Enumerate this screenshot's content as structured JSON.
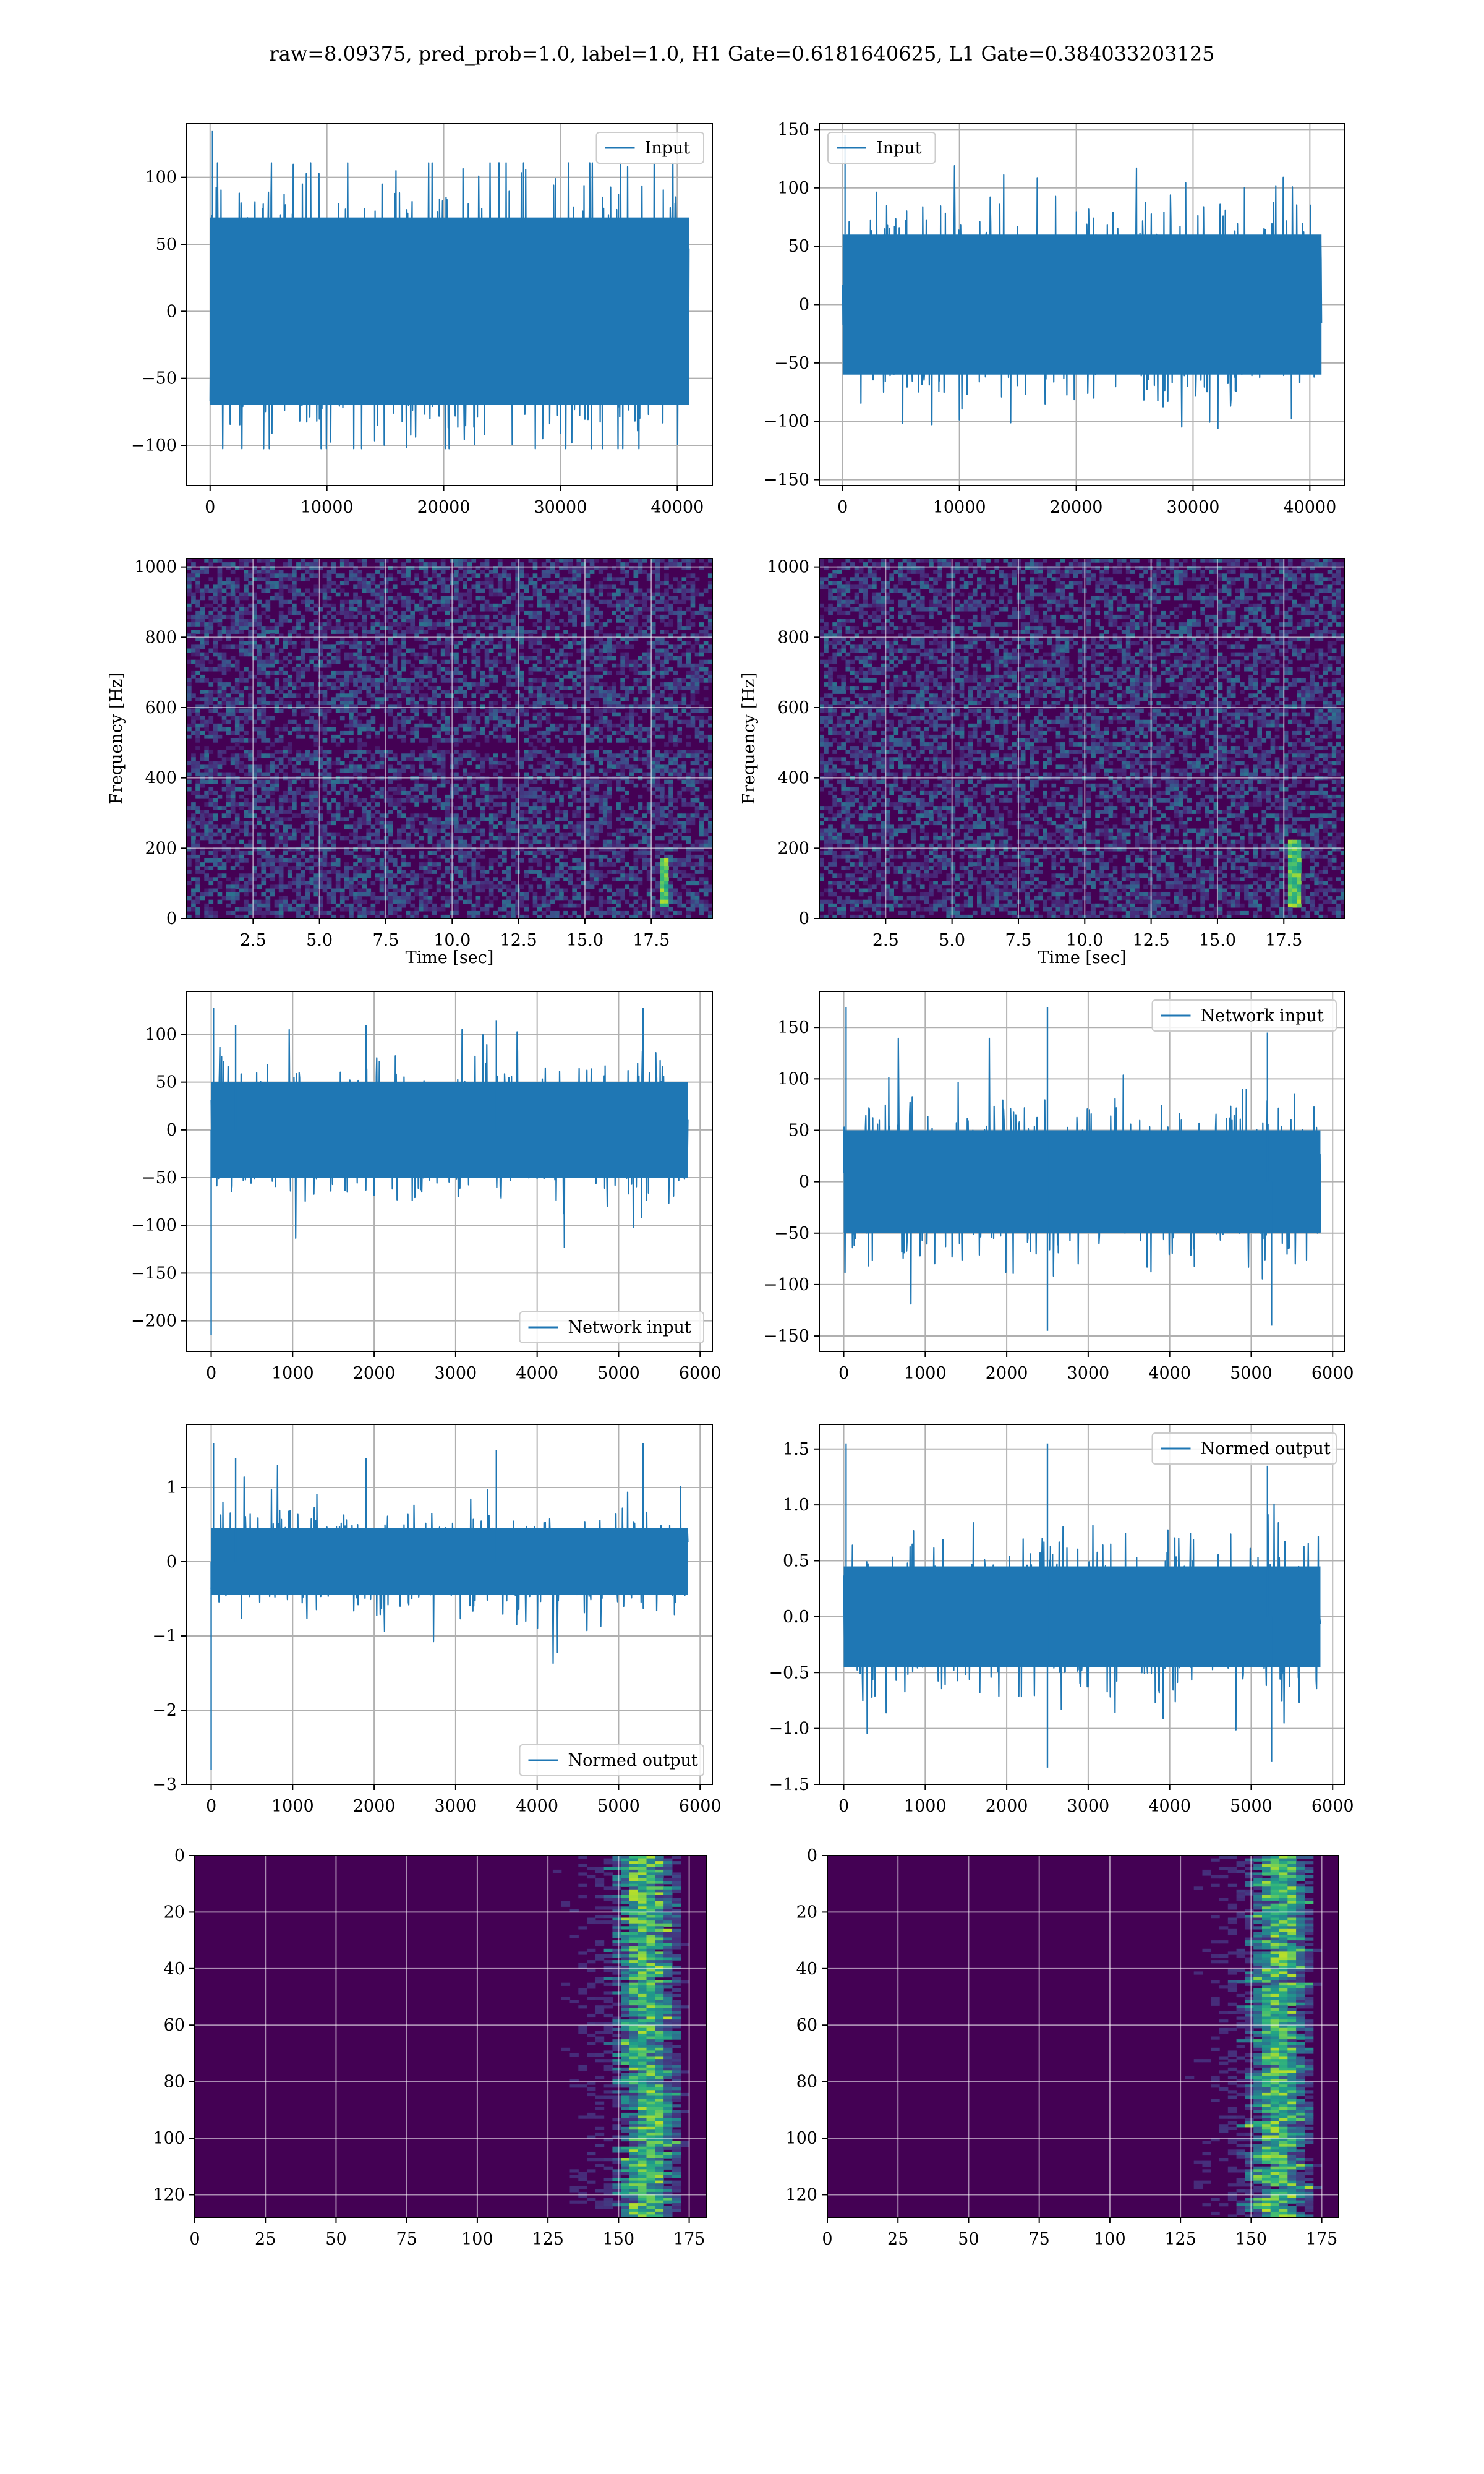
{
  "figure": {
    "title": "raw=8.09375, pred_prob=1.0, label=1.0, H1 Gate=0.6181640625, L1 Gate=0.384033203125",
    "colors": {
      "line": "#1f77b4",
      "grid": "#b0b0b0",
      "axes": "#000000",
      "viridis_dark": "#440154",
      "viridis_mid": "#21918c",
      "viridis_bright": "#fde725"
    }
  },
  "chart_data": [
    {
      "id": "h1-input",
      "type": "line",
      "legend": [
        "Input"
      ],
      "legend_loc": "upper right",
      "x": [
        0,
        41000
      ],
      "y_envelope": {
        "typical": [
          -70,
          70
        ],
        "peak": [
          -125,
          135
        ]
      },
      "xlim": [
        -2000,
        43000
      ],
      "ylim": [
        -130,
        140
      ],
      "xticks": [
        0,
        10000,
        20000,
        30000,
        40000
      ],
      "yticks": [
        -100,
        -50,
        0,
        50,
        100
      ],
      "grid": true
    },
    {
      "id": "l1-input",
      "type": "line",
      "legend": [
        "Input"
      ],
      "legend_loc": "upper left",
      "x": [
        0,
        41000
      ],
      "y_envelope": {
        "typical": [
          -60,
          60
        ],
        "peak": [
          -140,
          145
        ]
      },
      "xlim": [
        -2000,
        43000
      ],
      "ylim": [
        -155,
        155
      ],
      "xticks": [
        0,
        10000,
        20000,
        30000,
        40000
      ],
      "yticks": [
        -150,
        -100,
        -50,
        0,
        50,
        100,
        150
      ],
      "grid": true
    },
    {
      "id": "h1-spectrogram",
      "type": "heatmap",
      "xlabel": "Time [sec]",
      "ylabel": "Frequency [Hz]",
      "xlim": [
        0,
        19.8
      ],
      "ylim": [
        0,
        1024
      ],
      "xticks": [
        2.5,
        5.0,
        7.5,
        10.0,
        12.5,
        15.0,
        17.5
      ],
      "yticks": [
        0,
        200,
        400,
        600,
        800,
        1000
      ],
      "colormap": "viridis",
      "features": [
        {
          "kind": "chirp",
          "time": 18.0,
          "freq_range": [
            30,
            170
          ]
        },
        {
          "kind": "dark-band",
          "freq": 490
        }
      ],
      "grid": true
    },
    {
      "id": "l1-spectrogram",
      "type": "heatmap",
      "xlabel": "Time [sec]",
      "ylabel": "Frequency [Hz]",
      "xlim": [
        0,
        19.8
      ],
      "ylim": [
        0,
        1024
      ],
      "xticks": [
        2.5,
        5.0,
        7.5,
        10.0,
        12.5,
        15.0,
        17.5
      ],
      "yticks": [
        0,
        200,
        400,
        600,
        800,
        1000
      ],
      "colormap": "viridis",
      "features": [
        {
          "kind": "chirp",
          "time": 17.9,
          "freq_range": [
            30,
            220
          ]
        }
      ],
      "grid": true
    },
    {
      "id": "h1-network-input",
      "type": "line",
      "legend": [
        "Network input"
      ],
      "legend_loc": "lower right",
      "x": [
        0,
        5850
      ],
      "y_envelope": {
        "typical": [
          -50,
          50
        ],
        "peak": [
          -215,
          128
        ]
      },
      "xlim": [
        -300,
        6150
      ],
      "ylim": [
        -232,
        145
      ],
      "xticks": [
        0,
        1000,
        2000,
        3000,
        4000,
        5000,
        6000
      ],
      "yticks": [
        -200,
        -150,
        -100,
        -50,
        0,
        50,
        100
      ],
      "spikes": [
        [
          0,
          -215
        ],
        [
          300,
          110
        ],
        [
          1900,
          110
        ],
        [
          3500,
          115
        ],
        [
          5300,
          128
        ]
      ],
      "grid": true
    },
    {
      "id": "l1-network-input",
      "type": "line",
      "legend": [
        "Network input"
      ],
      "legend_loc": "upper right",
      "x": [
        0,
        5850
      ],
      "y_envelope": {
        "typical": [
          -50,
          50
        ],
        "peak": [
          -145,
          170
        ]
      },
      "xlim": [
        -300,
        6150
      ],
      "ylim": [
        -165,
        185
      ],
      "xticks": [
        0,
        1000,
        2000,
        3000,
        4000,
        5000,
        6000
      ],
      "yticks": [
        -150,
        -100,
        -50,
        0,
        50,
        100,
        150
      ],
      "spikes": [
        [
          2500,
          170
        ],
        [
          2500,
          -145
        ],
        [
          5200,
          145
        ],
        [
          5250,
          -140
        ]
      ],
      "grid": true
    },
    {
      "id": "h1-normed-output",
      "type": "line",
      "legend": [
        "Normed output"
      ],
      "legend_loc": "lower right",
      "x": [
        0,
        5850
      ],
      "y_envelope": {
        "typical": [
          -0.45,
          0.45
        ],
        "peak": [
          -2.8,
          1.6
        ]
      },
      "xlim": [
        -300,
        6150
      ],
      "ylim": [
        -3.0,
        1.85
      ],
      "xticks": [
        0,
        1000,
        2000,
        3000,
        4000,
        5000,
        6000
      ],
      "yticks": [
        -3,
        -2,
        -1,
        0,
        1
      ],
      "spikes": [
        [
          0,
          -2.8
        ],
        [
          300,
          1.4
        ],
        [
          1900,
          1.4
        ],
        [
          3500,
          1.5
        ],
        [
          5300,
          1.6
        ]
      ],
      "grid": true
    },
    {
      "id": "l1-normed-output",
      "type": "line",
      "legend": [
        "Normed output"
      ],
      "legend_loc": "upper right",
      "x": [
        0,
        5850
      ],
      "y_envelope": {
        "typical": [
          -0.45,
          0.45
        ],
        "peak": [
          -1.35,
          1.55
        ]
      },
      "xlim": [
        -300,
        6150
      ],
      "ylim": [
        -1.5,
        1.72
      ],
      "xticks": [
        0,
        1000,
        2000,
        3000,
        4000,
        5000,
        6000
      ],
      "yticks": [
        -1.5,
        -1.0,
        -0.5,
        0.0,
        0.5,
        1.0,
        1.5
      ],
      "spikes": [
        [
          2500,
          1.55
        ],
        [
          2500,
          -1.35
        ],
        [
          5200,
          1.35
        ],
        [
          5250,
          -1.3
        ]
      ],
      "grid": true
    },
    {
      "id": "h1-feature-map",
      "type": "heatmap",
      "xlim": [
        0,
        181
      ],
      "ylim": [
        128,
        0
      ],
      "xticks": [
        0,
        25,
        50,
        75,
        100,
        125,
        150,
        175
      ],
      "yticks": [
        0,
        20,
        40,
        60,
        80,
        100,
        120
      ],
      "colormap": "viridis",
      "rows": 128,
      "cols": 181,
      "features": [
        {
          "kind": "bright-column",
          "col_range": [
            150,
            170
          ]
        }
      ],
      "grid": true
    },
    {
      "id": "l1-feature-map",
      "type": "heatmap",
      "xlim": [
        0,
        181
      ],
      "ylim": [
        128,
        0
      ],
      "xticks": [
        0,
        25,
        50,
        75,
        100,
        125,
        150,
        175
      ],
      "yticks": [
        0,
        20,
        40,
        60,
        80,
        100,
        120
      ],
      "colormap": "viridis",
      "rows": 128,
      "cols": 181,
      "features": [
        {
          "kind": "bright-column",
          "col_range": [
            148,
            172
          ]
        }
      ],
      "grid": true
    }
  ]
}
